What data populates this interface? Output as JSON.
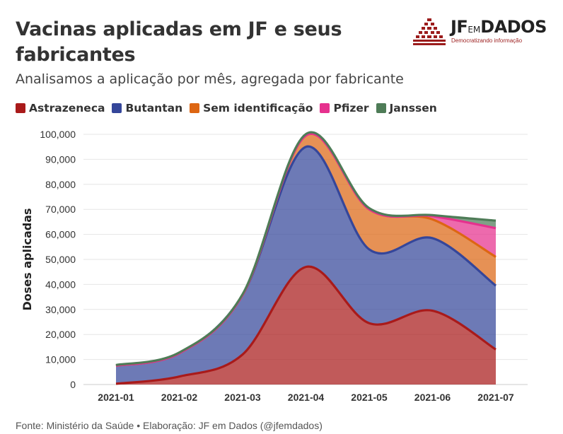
{
  "header": {
    "title": "Vacinas aplicadas em JF e seus fabricantes",
    "subtitle": "Analisamos a aplicação por mês, agregada por fabricante"
  },
  "logo": {
    "brand_prefix": "JF",
    "brand_em": "EM",
    "brand_suffix": "DADOS",
    "tagline": "Democratizando informação"
  },
  "footer": {
    "source": "Fonte: Ministério da Saúde • Elaboração: JF em Dados (@jfemdados)"
  },
  "colors": {
    "Astrazeneca": "#a91a1a",
    "Butantan": "#35469a",
    "Sem identificação": "#dd6613",
    "Pfizer": "#e6318e",
    "Janssen": "#4e7c57"
  },
  "chart_data": {
    "type": "area",
    "stacked": true,
    "title": "Vacinas aplicadas em JF e seus fabricantes",
    "xlabel": "",
    "ylabel": "Doses aplicadas",
    "categories": [
      "2021-01",
      "2021-02",
      "2021-03",
      "2021-04",
      "2021-05",
      "2021-06",
      "2021-07"
    ],
    "ylim": [
      0,
      100000
    ],
    "yticks": [
      "0",
      "10,000",
      "20,000",
      "30,000",
      "40,000",
      "50,000",
      "60,000",
      "70,000",
      "80,000",
      "90,000",
      "100,000"
    ],
    "yticks_values": [
      0,
      10000,
      20000,
      30000,
      40000,
      50000,
      60000,
      70000,
      80000,
      90000,
      100000
    ],
    "legend_position": "top-left",
    "series": [
      {
        "name": "Astrazeneca",
        "values": [
          300,
          3200,
          12000,
          47000,
          24500,
          29500,
          14000
        ]
      },
      {
        "name": "Butantan",
        "values": [
          7200,
          9300,
          23800,
          48000,
          29500,
          29000,
          25500
        ]
      },
      {
        "name": "Sem identificação",
        "values": [
          0,
          0,
          0,
          4500,
          16000,
          7500,
          11500
        ]
      },
      {
        "name": "Pfizer",
        "values": [
          0,
          0,
          0,
          0,
          0,
          1300,
          11500
        ]
      },
      {
        "name": "Janssen",
        "values": [
          300,
          300,
          300,
          600,
          500,
          400,
          3000
        ]
      }
    ]
  }
}
